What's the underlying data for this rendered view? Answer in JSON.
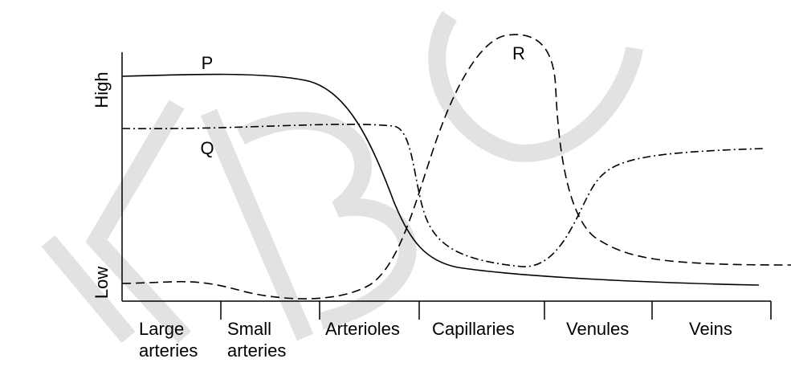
{
  "y_axis": {
    "high": "High",
    "low": "Low"
  },
  "curves": [
    {
      "label": "P"
    },
    {
      "label": "Q"
    },
    {
      "label": "R"
    }
  ],
  "regions": [
    {
      "lines": [
        "Large",
        "arteries"
      ]
    },
    {
      "lines": [
        "Small",
        "arteries"
      ]
    },
    {
      "lines": [
        "Arterioles"
      ]
    },
    {
      "lines": [
        "Capillaries"
      ]
    },
    {
      "lines": [
        "Venules"
      ]
    },
    {
      "lines": [
        "Veins"
      ]
    }
  ]
}
